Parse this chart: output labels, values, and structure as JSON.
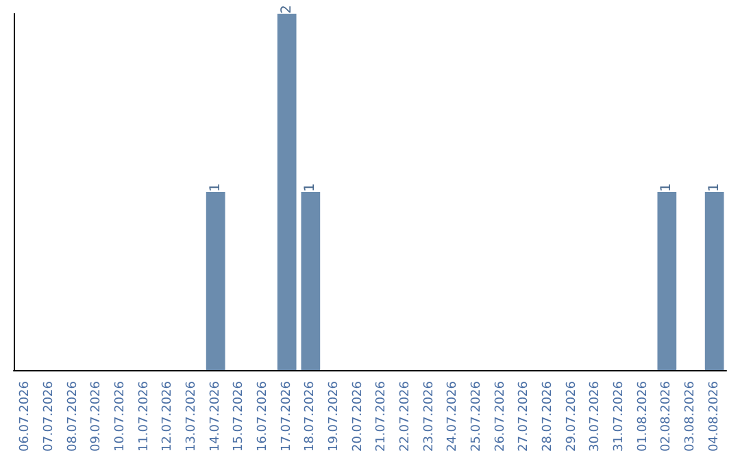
{
  "chart_data": {
    "type": "bar",
    "categories": [
      "06.07.2026",
      "07.07.2026",
      "08.07.2026",
      "09.07.2026",
      "10.07.2026",
      "11.07.2026",
      "12.07.2026",
      "13.07.2026",
      "14.07.2026",
      "15.07.2026",
      "16.07.2026",
      "17.07.2026",
      "18.07.2026",
      "19.07.2026",
      "20.07.2026",
      "21.07.2026",
      "22.07.2026",
      "23.07.2026",
      "24.07.2026",
      "25.07.2026",
      "26.07.2026",
      "27.07.2026",
      "28.07.2026",
      "29.07.2026",
      "30.07.2026",
      "31.07.2026",
      "01.08.2026",
      "02.08.2026",
      "03.08.2026",
      "04.08.2026"
    ],
    "values": [
      0,
      0,
      0,
      0,
      0,
      0,
      0,
      0,
      1,
      0,
      0,
      2,
      1,
      0,
      0,
      0,
      0,
      0,
      0,
      0,
      0,
      0,
      0,
      0,
      0,
      0,
      0,
      1,
      0,
      1
    ],
    "value_labels": [
      null,
      null,
      null,
      null,
      null,
      null,
      null,
      null,
      "1",
      null,
      null,
      "2",
      "1",
      null,
      null,
      null,
      null,
      null,
      null,
      null,
      null,
      null,
      null,
      null,
      null,
      null,
      null,
      "1",
      null,
      "1"
    ],
    "color": "#6b8cae",
    "tick_labels": "x"
  }
}
